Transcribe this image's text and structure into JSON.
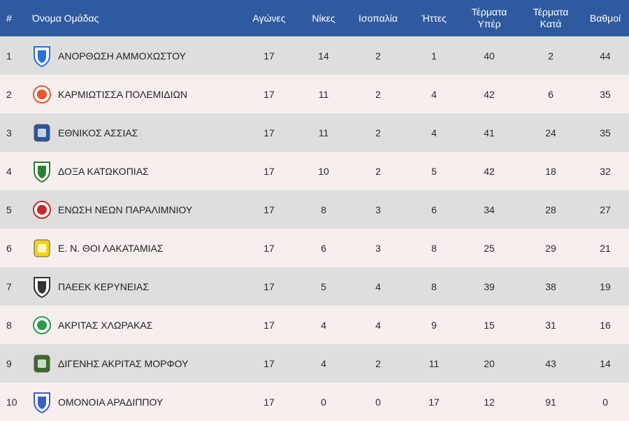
{
  "headers": {
    "rank": "#",
    "team": "Όνομα Ομάδας",
    "played": "Αγώνες",
    "wins": "Νίκες",
    "draws": "Ισοπαλία",
    "losses": "Ήττες",
    "goals_for": [
      "Τέρματα",
      "Υπέρ"
    ],
    "goals_against": [
      "Τέρματα",
      "Κατά"
    ],
    "points": "Βαθμοί"
  },
  "rows": [
    {
      "rank": "1",
      "team": "ΑΝΟΡΘΩΣΗ ΑΜΜΟΧΩΣΤΟΥ",
      "played": "17",
      "wins": "14",
      "draws": "2",
      "losses": "1",
      "gf": "40",
      "ga": "2",
      "pts": "44",
      "logo": "anorthosis-crest-icon",
      "color": "#2b6fd6"
    },
    {
      "rank": "2",
      "team": "ΚΑΡΜΙΩΤΙΣΣΑ ΠΟΛΕΜΙΔΙΩΝ",
      "played": "17",
      "wins": "11",
      "draws": "2",
      "losses": "4",
      "gf": "42",
      "ga": "6",
      "pts": "35",
      "logo": "karmiotissa-crest-icon",
      "color": "#e8552a"
    },
    {
      "rank": "3",
      "team": "ΕΘΝΙΚΟΣ ΑΣΣΙΑΣ",
      "played": "17",
      "wins": "11",
      "draws": "2",
      "losses": "4",
      "gf": "41",
      "ga": "24",
      "pts": "35",
      "logo": "ethnikos-crest-icon",
      "color": "#2a55a0"
    },
    {
      "rank": "4",
      "team": "ΔΟΞΑ ΚΑΤΩΚΟΠΙΑΣ",
      "played": "17",
      "wins": "10",
      "draws": "2",
      "losses": "5",
      "gf": "42",
      "ga": "18",
      "pts": "32",
      "logo": "doxa-crest-icon",
      "color": "#2e7d32"
    },
    {
      "rank": "5",
      "team": "ΕΝΩΣΗ ΝΕΩΝ ΠΑΡΑΛΙΜΝΙΟΥ",
      "played": "17",
      "wins": "8",
      "draws": "3",
      "losses": "6",
      "gf": "34",
      "ga": "28",
      "pts": "27",
      "logo": "enp-crest-icon",
      "color": "#c62828"
    },
    {
      "rank": "6",
      "team": "Ε. Ν. ΘΟΙ ΛΑΚΑΤΑΜΙΑΣ",
      "played": "17",
      "wins": "6",
      "draws": "3",
      "losses": "8",
      "gf": "25",
      "ga": "29",
      "pts": "21",
      "logo": "thoi-crest-icon",
      "color": "#f2d21b"
    },
    {
      "rank": "7",
      "team": "ΠΑΕΕΚ ΚΕΡΥΝΕΙΑΣ",
      "played": "17",
      "wins": "5",
      "draws": "4",
      "losses": "8",
      "gf": "39",
      "ga": "38",
      "pts": "19",
      "logo": "paeek-crest-icon",
      "color": "#333333"
    },
    {
      "rank": "8",
      "team": "ΑΚΡΙΤΑΣ ΧΛΩΡΑΚΑΣ",
      "played": "17",
      "wins": "4",
      "draws": "4",
      "losses": "9",
      "gf": "15",
      "ga": "31",
      "pts": "16",
      "logo": "akritas-crest-icon",
      "color": "#2e9a4a"
    },
    {
      "rank": "9",
      "team": "ΔΙΓΕΝΗΣ ΑΚΡΙΤΑΣ ΜΟΡΦΟΥ",
      "played": "17",
      "wins": "4",
      "draws": "2",
      "losses": "11",
      "gf": "20",
      "ga": "43",
      "pts": "14",
      "logo": "digenis-crest-icon",
      "color": "#3a6b2a"
    },
    {
      "rank": "10",
      "team": "ΟΜΟΝΟΙΑ ΑΡΑΔΙΠΠΟΥ",
      "played": "17",
      "wins": "0",
      "draws": "0",
      "losses": "17",
      "gf": "12",
      "ga": "91",
      "pts": "0",
      "logo": "omonia-aradippou-crest-icon",
      "color": "#3b5fc4"
    }
  ],
  "colors": {
    "header_bg": "#2f5aa0",
    "row_odd": "#dedede",
    "row_even": "#f7eeee"
  }
}
